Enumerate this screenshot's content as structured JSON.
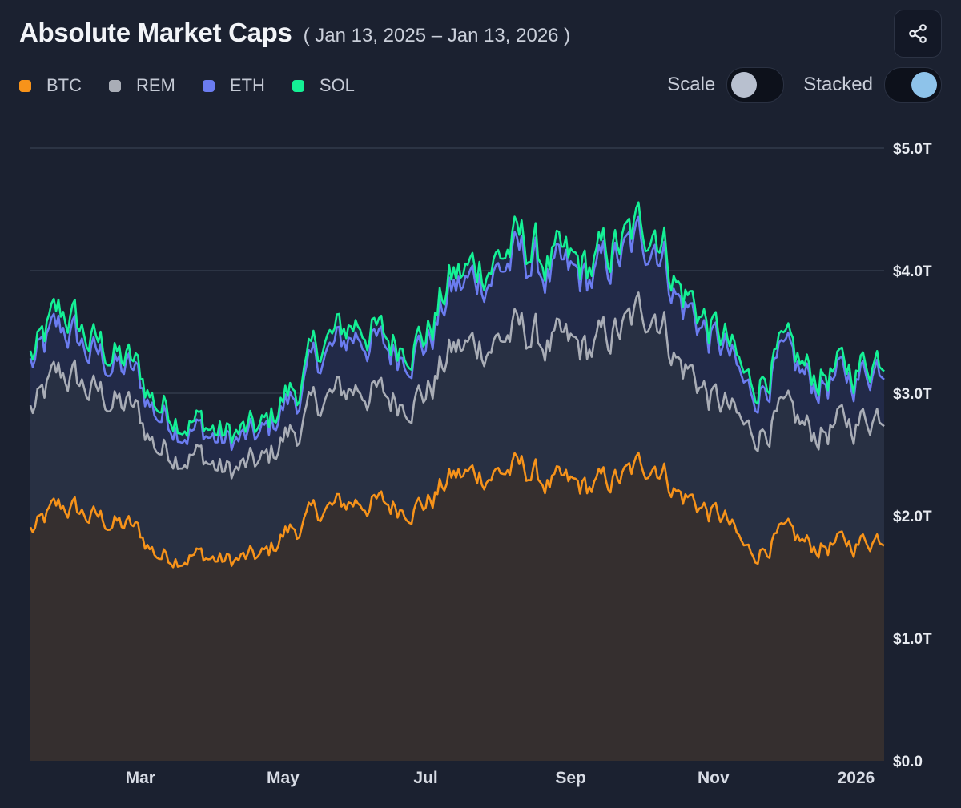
{
  "header": {
    "title": "Absolute Market Caps",
    "date_range": "( Jan 13, 2025 – Jan 13, 2026 )"
  },
  "toolbar": {
    "share_icon": "share-icon"
  },
  "legend": [
    {
      "label": "BTC",
      "color": "#f7931a"
    },
    {
      "label": "REM",
      "color": "#a9adb6"
    },
    {
      "label": "ETH",
      "color": "#6b7cf0"
    },
    {
      "label": "SOL",
      "color": "#14f195"
    }
  ],
  "toggles": {
    "scale": {
      "label": "Scale",
      "on": false
    },
    "stacked": {
      "label": "Stacked",
      "on": true
    }
  },
  "chart_data": {
    "type": "area",
    "stacked": true,
    "x_ticks": [
      "Mar",
      "May",
      "Jul",
      "Sep",
      "Nov",
      "2026"
    ],
    "y_ticks": [
      "$0.0",
      "$1.0T",
      "$2.0T",
      "$3.0T",
      "$4.0T",
      "$5.0T"
    ],
    "ylim": [
      0,
      5.0
    ],
    "grid": true,
    "dates": [
      "2025-01-13",
      "2025-01-27",
      "2025-02-10",
      "2025-02-24",
      "2025-03-10",
      "2025-03-24",
      "2025-04-07",
      "2025-04-21",
      "2025-05-05",
      "2025-05-19",
      "2025-06-02",
      "2025-06-16",
      "2025-06-30",
      "2025-07-14",
      "2025-07-28",
      "2025-08-11",
      "2025-08-25",
      "2025-09-08",
      "2025-09-22",
      "2025-10-06",
      "2025-10-20",
      "2025-11-03",
      "2025-11-17",
      "2025-12-01",
      "2025-12-15",
      "2025-12-29",
      "2026-01-13"
    ],
    "series": [
      {
        "name": "BTC",
        "unit": "T USD",
        "values": [
          1.88,
          2.07,
          1.98,
          1.91,
          1.68,
          1.68,
          1.63,
          1.66,
          1.89,
          2.05,
          2.12,
          2.08,
          2.1,
          2.32,
          2.35,
          2.38,
          2.25,
          2.23,
          2.3,
          2.45,
          2.15,
          2.0,
          1.7,
          1.83,
          1.75,
          1.77,
          1.84
        ]
      },
      {
        "name": "REM",
        "unit": "T USD stacked total",
        "values": [
          2.86,
          3.15,
          3.0,
          2.88,
          2.55,
          2.5,
          2.36,
          2.42,
          2.68,
          2.95,
          3.05,
          2.95,
          3.0,
          3.35,
          3.42,
          3.5,
          3.38,
          3.35,
          3.5,
          3.72,
          3.2,
          2.92,
          2.68,
          2.8,
          2.68,
          2.75,
          2.86
        ]
      },
      {
        "name": "ETH",
        "unit": "T USD stacked total",
        "values": [
          3.24,
          3.52,
          3.3,
          3.18,
          2.82,
          2.7,
          2.6,
          2.64,
          2.95,
          3.32,
          3.48,
          3.34,
          3.4,
          3.85,
          3.98,
          4.1,
          3.95,
          3.92,
          4.1,
          4.3,
          3.7,
          3.4,
          3.0,
          3.24,
          3.08,
          3.12,
          3.26
        ]
      },
      {
        "name": "SOL",
        "unit": "T USD stacked total",
        "values": [
          3.3,
          3.65,
          3.4,
          3.25,
          2.9,
          2.77,
          2.66,
          2.7,
          3.02,
          3.42,
          3.58,
          3.42,
          3.47,
          3.95,
          4.08,
          4.22,
          4.05,
          4.02,
          4.2,
          4.42,
          3.8,
          3.48,
          3.08,
          3.31,
          3.15,
          3.19,
          3.33
        ]
      }
    ]
  }
}
